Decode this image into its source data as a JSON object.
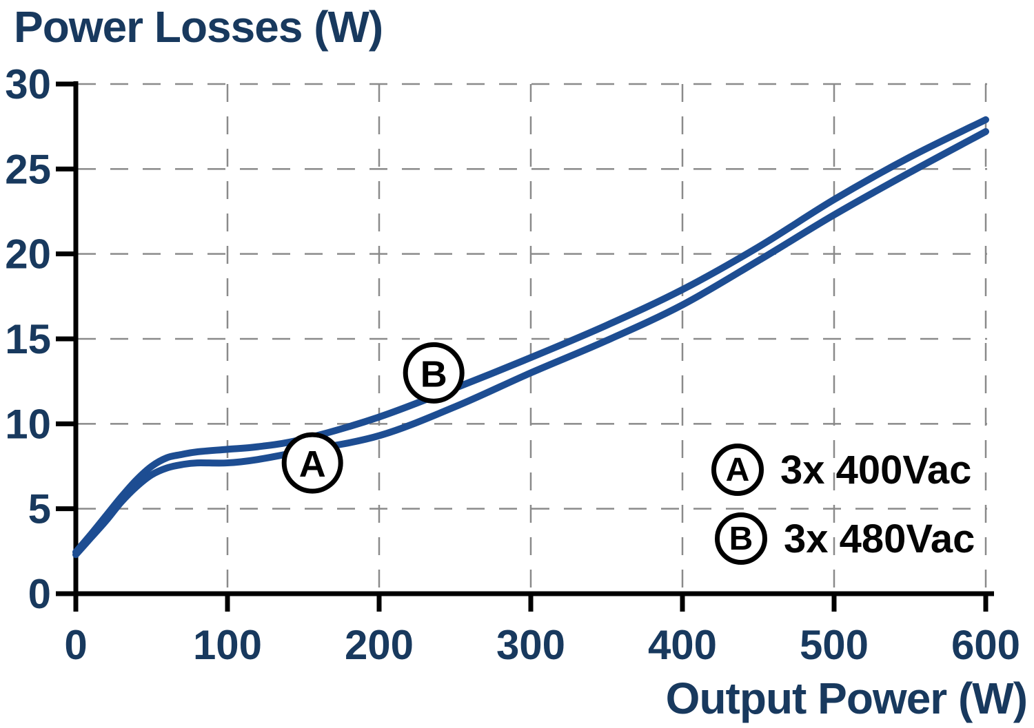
{
  "chart_data": {
    "type": "line",
    "title": "Power Losses (W)",
    "xlabel": "Output Power (W)",
    "ylabel": "Power Losses (W)",
    "xlim": [
      0,
      600
    ],
    "ylim": [
      0,
      30
    ],
    "x_ticks": [
      0,
      100,
      200,
      300,
      400,
      500,
      600
    ],
    "y_ticks": [
      0,
      5,
      10,
      15,
      20,
      25,
      30
    ],
    "grid": true,
    "grid_style": "dashed",
    "x": [
      0,
      10,
      20,
      30,
      40,
      50,
      60,
      70,
      80,
      100,
      120,
      150,
      200,
      250,
      300,
      350,
      400,
      450,
      500,
      550,
      600
    ],
    "series": [
      {
        "name": "A",
        "label": "3x 400Vac",
        "values": [
          2.3,
          3.3,
          4.3,
          5.4,
          6.3,
          7.0,
          7.4,
          7.6,
          7.7,
          7.7,
          7.9,
          8.4,
          9.3,
          11.0,
          13.0,
          14.9,
          17.0,
          19.6,
          22.3,
          24.8,
          27.2
        ]
      },
      {
        "name": "B",
        "label": "3x 480Vac",
        "values": [
          2.45,
          3.5,
          4.6,
          5.7,
          6.7,
          7.5,
          8.0,
          8.2,
          8.35,
          8.5,
          8.65,
          9.1,
          10.4,
          12.1,
          13.9,
          15.8,
          17.9,
          20.4,
          23.2,
          25.7,
          27.9
        ]
      }
    ],
    "annotations": [
      {
        "marker": "A",
        "x": 156,
        "y": 7.7
      },
      {
        "marker": "B",
        "x": 236,
        "y": 13.0
      }
    ],
    "legend": {
      "position": "lower right",
      "entries": [
        {
          "marker": "A",
          "label": "3x 400Vac"
        },
        {
          "marker": "B",
          "label": "3x 480Vac"
        }
      ]
    },
    "colors": {
      "curve": "#1d4d92",
      "axis_text": "#18395e",
      "axis_line": "#000000",
      "grid": "#8a8a8a",
      "legend_text": "#050505",
      "background": "#ffffff"
    }
  }
}
